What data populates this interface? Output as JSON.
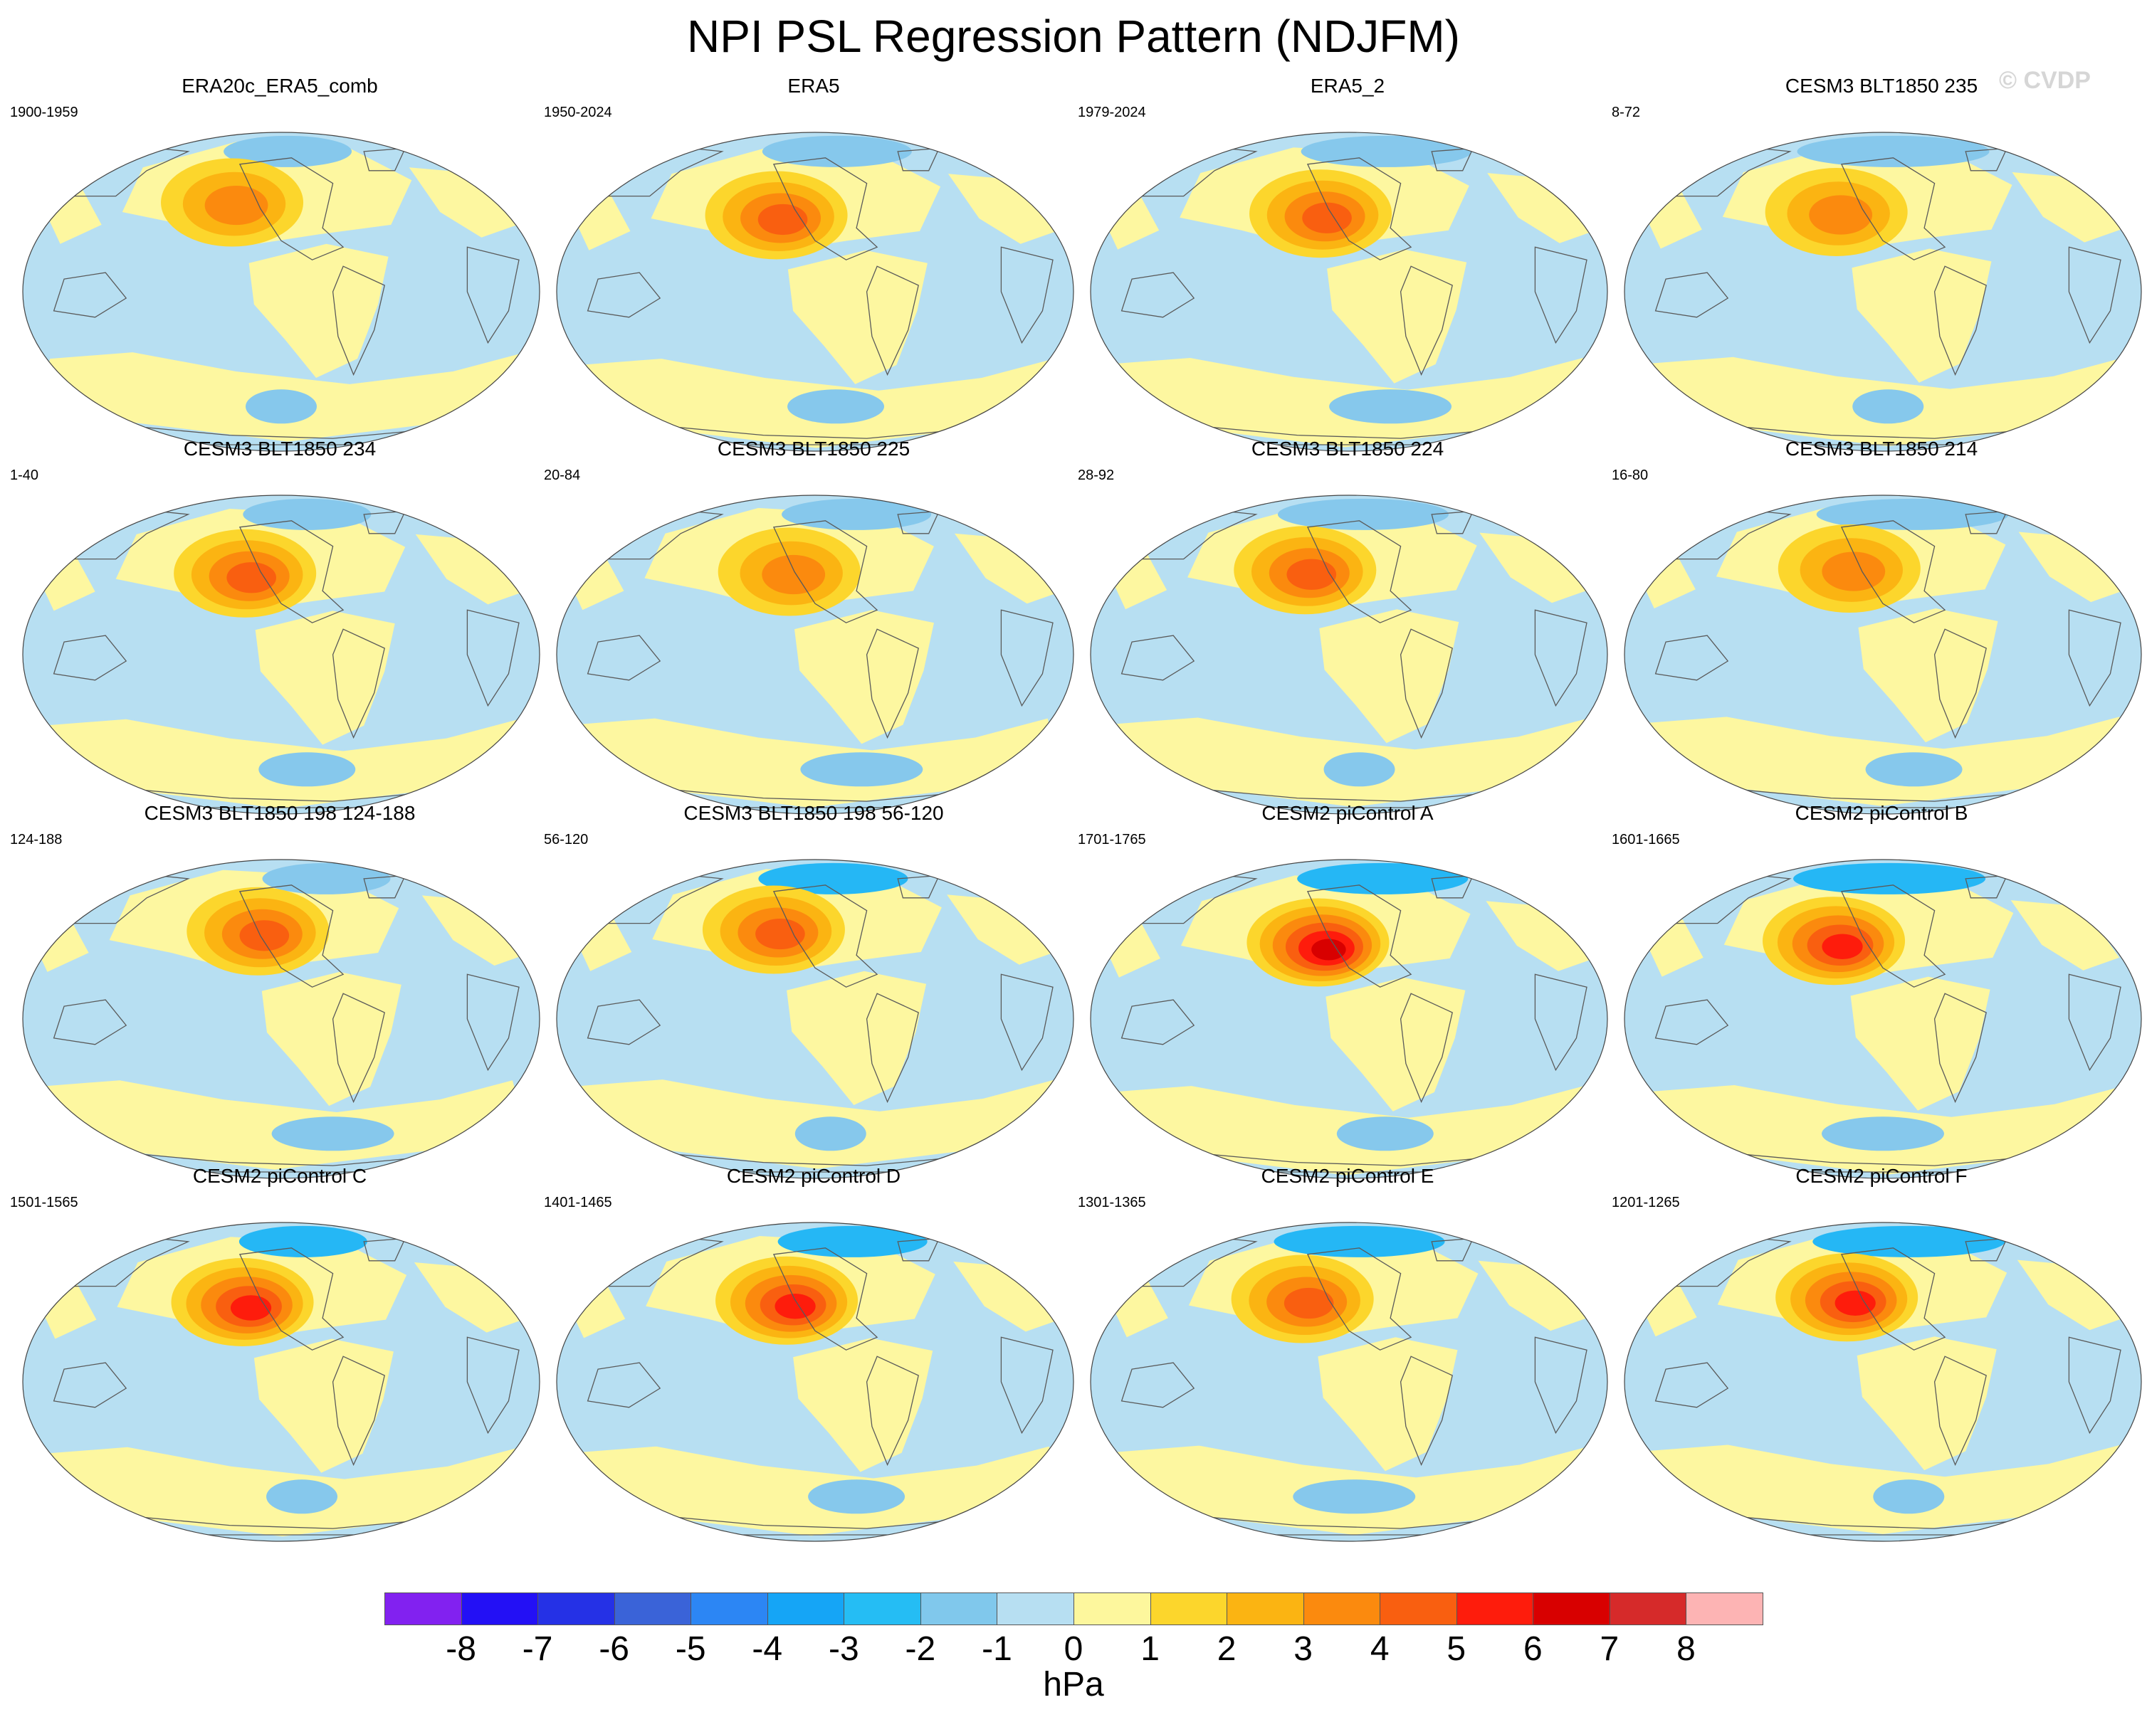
{
  "title": "NPI PSL Regression Pattern (NDJFM)",
  "copyright": "© CVDP",
  "colors": {
    "neg_weak": "#b7dff2",
    "neg_mid": "#86c8ec",
    "neg_strong": "#25b7f5",
    "pos_weak": "#fdf7a0",
    "pos_1": "#fcd62c",
    "pos_2": "#fbb412",
    "pos_3": "#fb8a0e",
    "pos_4": "#f95f10",
    "pos_5": "#fe1c0c",
    "pos_6": "#d80000",
    "coast": "#5a5a5a"
  },
  "panels": [
    {
      "title": "ERA20c_ERA5_comb",
      "years": "1900-1959",
      "peak": 3,
      "variant": 0
    },
    {
      "title": "ERA5",
      "years": "1950-2024",
      "peak": 4,
      "variant": 1
    },
    {
      "title": "ERA5_2",
      "years": "1979-2024",
      "peak": 4,
      "variant": 2
    },
    {
      "title": "CESM3 BLT1850 235",
      "years": "8-72",
      "peak": 3,
      "variant": 3
    },
    {
      "title": "CESM3 BLT1850 234",
      "years": "1-40",
      "peak": 4,
      "variant": 4
    },
    {
      "title": "CESM3 BLT1850 225",
      "years": "20-84",
      "peak": 3,
      "variant": 5
    },
    {
      "title": "CESM3 BLT1850 224",
      "years": "28-92",
      "peak": 4,
      "variant": 6
    },
    {
      "title": "CESM3 BLT1850 214",
      "years": "16-80",
      "peak": 3,
      "variant": 7
    },
    {
      "title": "CESM3 BLT1850 198 124-188",
      "years": "124-188",
      "peak": 4,
      "variant": 8
    },
    {
      "title": "CESM3 BLT1850 198 56-120",
      "years": "56-120",
      "peak": 4,
      "variant": 9
    },
    {
      "title": "CESM2 piControl A",
      "years": "1701-1765",
      "peak": 6,
      "variant": 10
    },
    {
      "title": "CESM2 piControl B",
      "years": "1601-1665",
      "peak": 5,
      "variant": 11
    },
    {
      "title": "CESM2 piControl C",
      "years": "1501-1565",
      "peak": 5,
      "variant": 12
    },
    {
      "title": "CESM2 piControl D",
      "years": "1401-1465",
      "peak": 5,
      "variant": 13
    },
    {
      "title": "CESM2 piControl E",
      "years": "1301-1365",
      "peak": 4,
      "variant": 14
    },
    {
      "title": "CESM2 piControl F",
      "years": "1201-1265",
      "peak": 5,
      "variant": 15
    }
  ],
  "colorbar": {
    "colors": [
      "#8221f0",
      "#2310f5",
      "#2531e6",
      "#3a63d8",
      "#2c86f4",
      "#15a5f6",
      "#25bdf4",
      "#80c8ec",
      "#b7dff2",
      "#fdf79d",
      "#fcd62c",
      "#fbb412",
      "#fb8a0e",
      "#f95f10",
      "#fe1c0c",
      "#d80000",
      "#d62a2a",
      "#fdb4b4"
    ],
    "labels": [
      "-8",
      "-7",
      "-6",
      "-5",
      "-4",
      "-3",
      "-2",
      "-1",
      "0",
      "1",
      "2",
      "3",
      "4",
      "5",
      "6",
      "7",
      "8"
    ],
    "units": "hPa"
  }
}
